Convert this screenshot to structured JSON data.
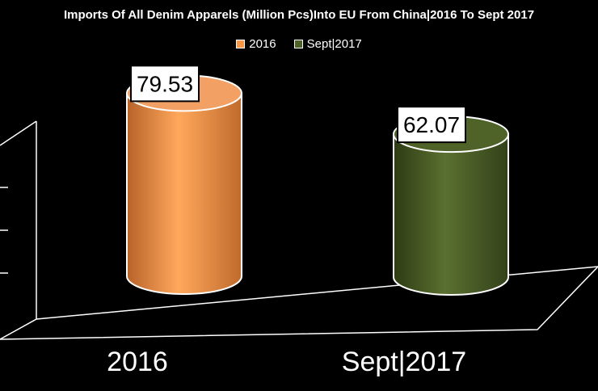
{
  "chart_data": {
    "type": "bar",
    "title": "Imports Of All Denim Apparels (Million Pcs)Into EU From China|2016 To Sept 2017",
    "categories": [
      "2016",
      "Sept|2017"
    ],
    "series": [
      {
        "name": "2016",
        "values": [
          79.53,
          null
        ],
        "color": "#F79646"
      },
      {
        "name": "Sept|2017",
        "values": [
          null,
          62.07
        ],
        "color": "#4F6228"
      }
    ],
    "data_labels": [
      "79.53",
      "62.07"
    ],
    "ylim": [
      0,
      100
    ],
    "legend_position": "top",
    "grid": false
  }
}
